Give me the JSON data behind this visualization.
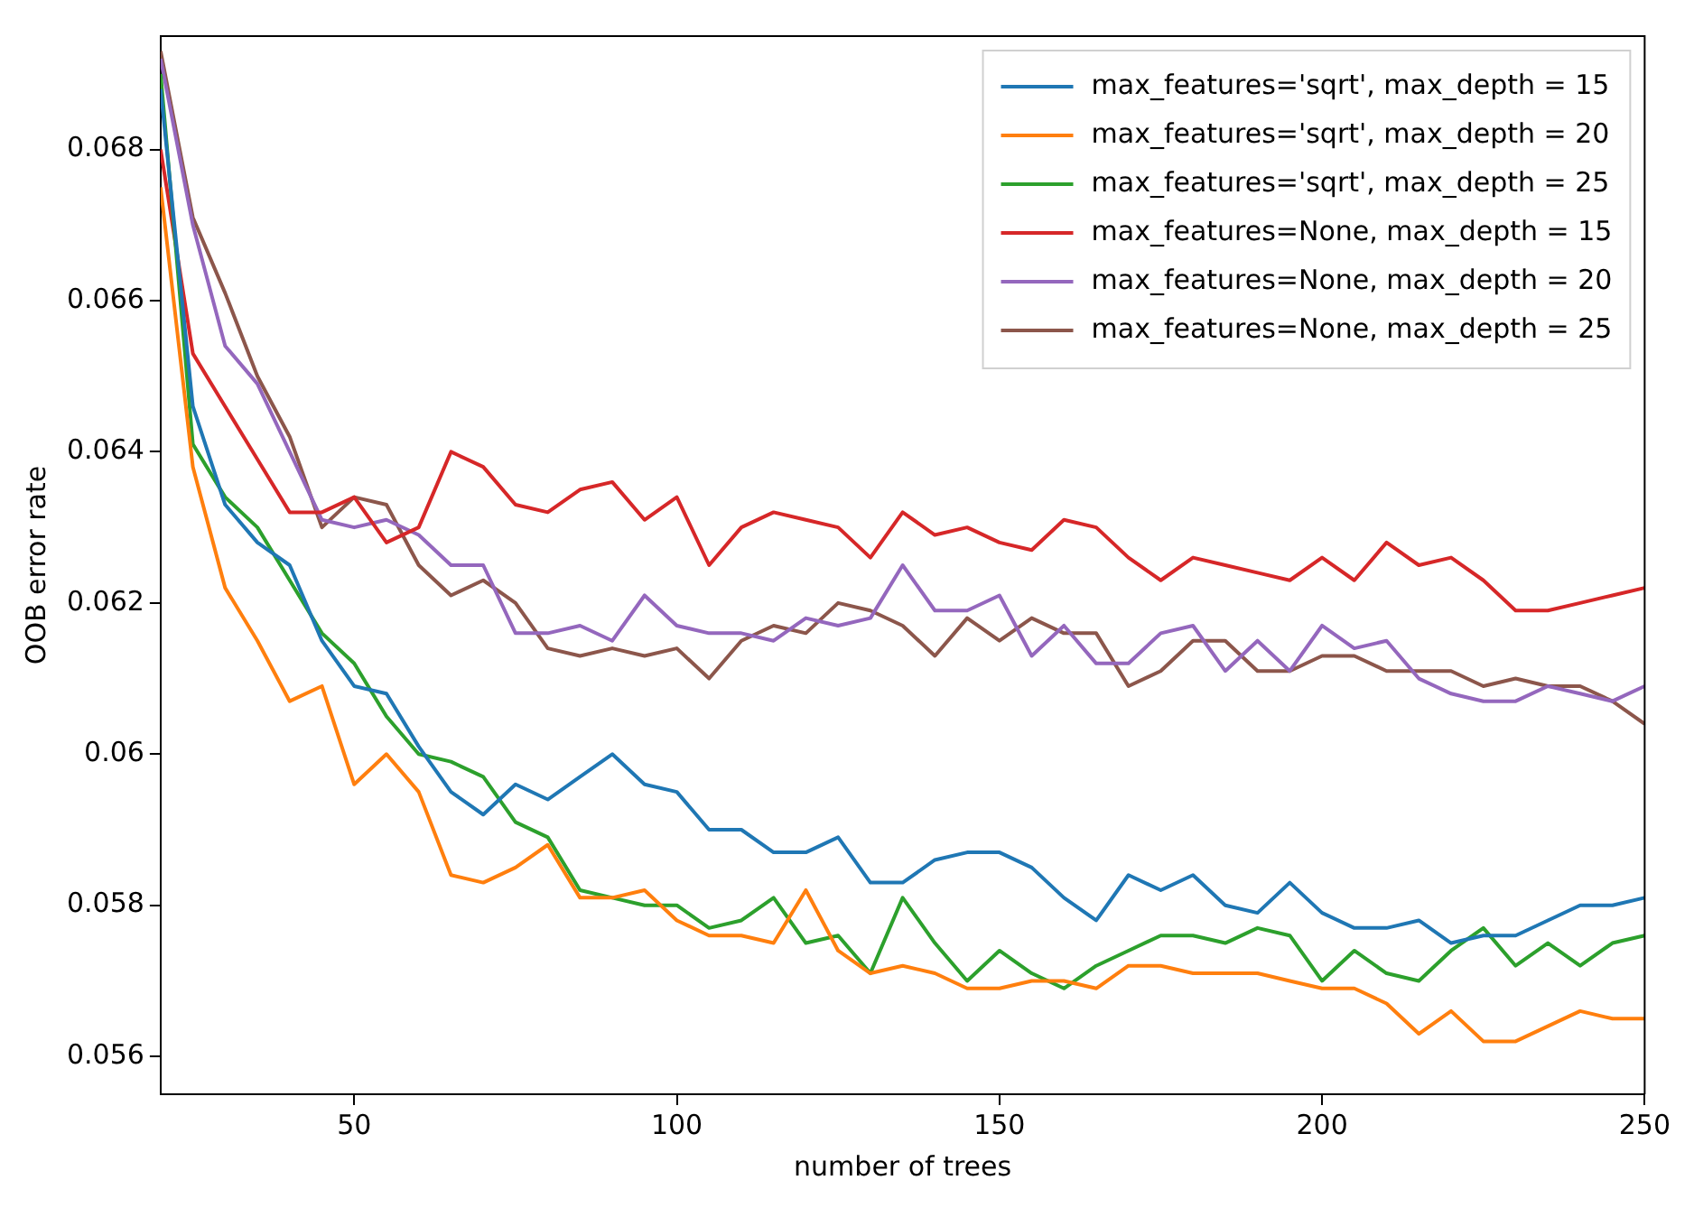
{
  "chart_data": {
    "type": "line",
    "xlabel": "number of trees",
    "ylabel": "OOB error rate",
    "x": [
      20,
      25,
      30,
      35,
      40,
      45,
      50,
      55,
      60,
      65,
      70,
      75,
      80,
      85,
      90,
      95,
      100,
      105,
      110,
      115,
      120,
      125,
      130,
      135,
      140,
      145,
      150,
      155,
      160,
      165,
      170,
      175,
      180,
      185,
      190,
      195,
      200,
      205,
      210,
      215,
      220,
      225,
      230,
      235,
      240,
      245,
      250
    ],
    "xlim": [
      20,
      250
    ],
    "xticks": [
      50,
      100,
      150,
      200,
      250
    ],
    "ylim": [
      0.0555,
      0.0695
    ],
    "yticks": [
      0.056,
      0.058,
      0.06,
      0.062,
      0.064,
      0.066,
      0.068
    ],
    "grid": false,
    "legend": "top right",
    "marker": "none",
    "line_style": "solid",
    "series": [
      {
        "name": "max_features='sqrt', max_depth = 15",
        "color": "#1f77b4",
        "values": [
          0.0688,
          0.0646,
          0.0633,
          0.0628,
          0.0625,
          0.0615,
          0.0609,
          0.0608,
          0.0601,
          0.0595,
          0.0592,
          0.0596,
          0.0594,
          0.0597,
          0.06,
          0.0596,
          0.0595,
          0.059,
          0.059,
          0.0587,
          0.0587,
          0.0589,
          0.0583,
          0.0583,
          0.0586,
          0.0587,
          0.0587,
          0.0585,
          0.0581,
          0.0578,
          0.0584,
          0.0582,
          0.0584,
          0.058,
          0.0579,
          0.0583,
          0.0579,
          0.0577,
          0.0577,
          0.0578,
          0.0575,
          0.0576,
          0.0576,
          0.0578,
          0.058,
          0.058,
          0.0581
        ]
      },
      {
        "name": "max_features='sqrt', max_depth = 20",
        "color": "#ff7f0e",
        "values": [
          0.0675,
          0.0638,
          0.0622,
          0.0615,
          0.0607,
          0.0609,
          0.0596,
          0.06,
          0.0595,
          0.0584,
          0.0583,
          0.0585,
          0.0588,
          0.0581,
          0.0581,
          0.0582,
          0.0578,
          0.0576,
          0.0576,
          0.0575,
          0.0582,
          0.0574,
          0.0571,
          0.0572,
          0.0571,
          0.0569,
          0.0569,
          0.057,
          0.057,
          0.0569,
          0.0572,
          0.0572,
          0.0571,
          0.0571,
          0.0571,
          0.057,
          0.0569,
          0.0569,
          0.0567,
          0.0563,
          0.0566,
          0.0562,
          0.0562,
          0.0564,
          0.0566,
          0.0565,
          0.0565
        ]
      },
      {
        "name": "max_features='sqrt', max_depth = 25",
        "color": "#2ca02c",
        "values": [
          0.069,
          0.0641,
          0.0634,
          0.063,
          0.0623,
          0.0616,
          0.0612,
          0.0605,
          0.06,
          0.0599,
          0.0597,
          0.0591,
          0.0589,
          0.0582,
          0.0581,
          0.058,
          0.058,
          0.0577,
          0.0578,
          0.0581,
          0.0575,
          0.0576,
          0.0571,
          0.0581,
          0.0575,
          0.057,
          0.0574,
          0.0571,
          0.0569,
          0.0572,
          0.0574,
          0.0576,
          0.0576,
          0.0575,
          0.0577,
          0.0576,
          0.057,
          0.0574,
          0.0571,
          0.057,
          0.0574,
          0.0577,
          0.0572,
          0.0575,
          0.0572,
          0.0575,
          0.0576
        ]
      },
      {
        "name": "max_features=None, max_depth = 15",
        "color": "#d62728",
        "values": [
          0.068,
          0.0653,
          0.0646,
          0.0639,
          0.0632,
          0.0632,
          0.0634,
          0.0628,
          0.063,
          0.064,
          0.0638,
          0.0633,
          0.0632,
          0.0635,
          0.0636,
          0.0631,
          0.0634,
          0.0625,
          0.063,
          0.0632,
          0.0631,
          0.063,
          0.0626,
          0.0632,
          0.0629,
          0.063,
          0.0628,
          0.0627,
          0.0631,
          0.063,
          0.0626,
          0.0623,
          0.0626,
          0.0625,
          0.0624,
          0.0623,
          0.0626,
          0.0623,
          0.0628,
          0.0625,
          0.0626,
          0.0623,
          0.0619,
          0.0619,
          0.062,
          0.0621,
          0.0622
        ]
      },
      {
        "name": "max_features=None, max_depth = 20",
        "color": "#9467bd",
        "values": [
          0.0692,
          0.067,
          0.0654,
          0.0649,
          0.064,
          0.0631,
          0.063,
          0.0631,
          0.0629,
          0.0625,
          0.0625,
          0.0616,
          0.0616,
          0.0617,
          0.0615,
          0.0621,
          0.0617,
          0.0616,
          0.0616,
          0.0615,
          0.0618,
          0.0617,
          0.0618,
          0.0625,
          0.0619,
          0.0619,
          0.0621,
          0.0613,
          0.0617,
          0.0612,
          0.0612,
          0.0616,
          0.0617,
          0.0611,
          0.0615,
          0.0611,
          0.0617,
          0.0614,
          0.0615,
          0.061,
          0.0608,
          0.0607,
          0.0607,
          0.0609,
          0.0608,
          0.0607,
          0.0609
        ]
      },
      {
        "name": "max_features=None, max_depth = 25",
        "color": "#8c564b",
        "values": [
          0.0693,
          0.0671,
          0.0661,
          0.065,
          0.0642,
          0.063,
          0.0634,
          0.0633,
          0.0625,
          0.0621,
          0.0623,
          0.062,
          0.0614,
          0.0613,
          0.0614,
          0.0613,
          0.0614,
          0.061,
          0.0615,
          0.0617,
          0.0616,
          0.062,
          0.0619,
          0.0617,
          0.0613,
          0.0618,
          0.0615,
          0.0618,
          0.0616,
          0.0616,
          0.0609,
          0.0611,
          0.0615,
          0.0615,
          0.0611,
          0.0611,
          0.0613,
          0.0613,
          0.0611,
          0.0611,
          0.0611,
          0.0609,
          0.061,
          0.0609,
          0.0609,
          0.0607,
          0.0604
        ]
      }
    ]
  }
}
